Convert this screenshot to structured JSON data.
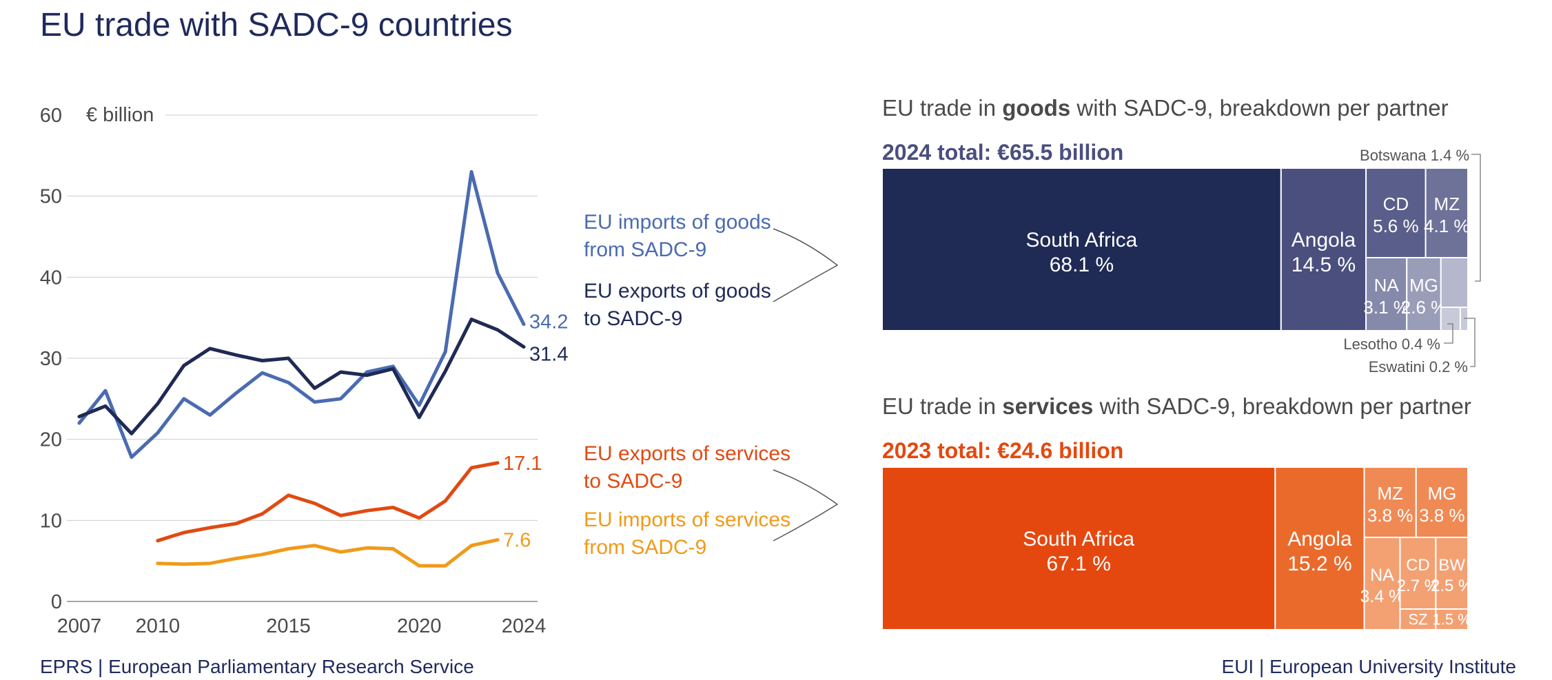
{
  "title": "EU trade with SADC-9 countries",
  "colors": {
    "title": "#1f2a5c",
    "imports_goods": "#4a6bb0",
    "exports_goods": "#1f2a55",
    "exports_services": "#e04a12",
    "imports_services": "#f09a1a",
    "grid": "#cccccc",
    "goods_treemap": [
      "#1f2a55",
      "#4a4f7e",
      "#5a5e8a",
      "#6e7299",
      "#8589aa",
      "#9a9db8",
      "#b5b7cc",
      "#c8cad9"
    ],
    "services_treemap": [
      "#e5480f",
      "#ea6a2c",
      "#f08a55",
      "#f3a173"
    ]
  },
  "chart_data": [
    {
      "type": "line",
      "ylabel": "€ billion",
      "ylim": [
        0,
        60
      ],
      "yticks": [
        "0",
        "10",
        "20",
        "30",
        "40",
        "50",
        "60"
      ],
      "xticks": [
        "2007",
        "2010",
        "2015",
        "2020",
        "2024"
      ],
      "series": [
        {
          "name": "EU imports of goods from SADC-9",
          "legend": [
            "EU imports of goods",
            "from SADC-9"
          ],
          "end_label": "34.2",
          "x": [
            2007,
            2008,
            2009,
            2010,
            2011,
            2012,
            2013,
            2014,
            2015,
            2016,
            2017,
            2018,
            2019,
            2020,
            2021,
            2022,
            2023,
            2024
          ],
          "values": [
            22.0,
            26.0,
            17.8,
            20.8,
            25.0,
            23.0,
            25.7,
            28.2,
            27.0,
            24.6,
            25.0,
            28.3,
            29.0,
            24.2,
            30.8,
            53.0,
            40.5,
            34.2
          ]
        },
        {
          "name": "EU exports of goods to SADC-9",
          "legend": [
            "EU exports of goods",
            "to SADC-9"
          ],
          "end_label": "31.4",
          "x": [
            2007,
            2008,
            2009,
            2010,
            2011,
            2012,
            2013,
            2014,
            2015,
            2016,
            2017,
            2018,
            2019,
            2020,
            2021,
            2022,
            2023,
            2024
          ],
          "values": [
            22.8,
            24.1,
            20.7,
            24.4,
            29.1,
            31.2,
            30.4,
            29.7,
            30.0,
            26.3,
            28.3,
            27.9,
            28.7,
            22.7,
            28.4,
            34.8,
            33.5,
            31.4
          ]
        },
        {
          "name": "EU exports of services to SADC-9",
          "legend": [
            "EU exports of services",
            "to SADC-9"
          ],
          "end_label": "17.1",
          "x": [
            2010,
            2011,
            2012,
            2013,
            2014,
            2015,
            2016,
            2017,
            2018,
            2019,
            2020,
            2021,
            2022,
            2023
          ],
          "values": [
            7.5,
            8.5,
            9.1,
            9.6,
            10.8,
            13.1,
            12.1,
            10.6,
            11.2,
            11.6,
            10.3,
            12.4,
            16.5,
            17.1
          ]
        },
        {
          "name": "EU imports of services from SADC-9",
          "legend": [
            "EU imports of services",
            "from SADC-9"
          ],
          "end_label": "7.6",
          "x": [
            2010,
            2011,
            2012,
            2013,
            2014,
            2015,
            2016,
            2017,
            2018,
            2019,
            2020,
            2021,
            2022,
            2023
          ],
          "values": [
            4.7,
            4.6,
            4.7,
            5.3,
            5.8,
            6.5,
            6.9,
            6.1,
            6.6,
            6.5,
            4.4,
            4.4,
            6.9,
            7.6
          ]
        }
      ]
    },
    {
      "type": "treemap",
      "title_parts": [
        "EU trade in ",
        "goods",
        " with SADC-9, breakdown per partner"
      ],
      "total": "2024 total: €65.5 billion",
      "total_value": 65.5,
      "segments": [
        {
          "label": "South Africa",
          "pct_label": "68.1 %",
          "value": 68.1
        },
        {
          "label": "Angola",
          "pct_label": "14.5 %",
          "value": 14.5
        },
        {
          "label": "CD",
          "pct_label": "5.6 %",
          "value": 5.6
        },
        {
          "label": "MZ",
          "pct_label": "4.1 %",
          "value": 4.1
        },
        {
          "label": "NA",
          "pct_label": "3.1 %",
          "value": 3.1
        },
        {
          "label": "MG",
          "pct_label": "2.6 %",
          "value": 2.6
        },
        {
          "label": "Botswana",
          "pct_label": "1.4 %",
          "value": 1.4,
          "callout": "Botswana 1.4 %"
        },
        {
          "label": "Lesotho",
          "pct_label": "0.4 %",
          "value": 0.4,
          "callout": "Lesotho 0.4 %"
        },
        {
          "label": "Eswatini",
          "pct_label": "0.2 %",
          "value": 0.2,
          "callout": "Eswatini 0.2 %"
        }
      ]
    },
    {
      "type": "treemap",
      "title_parts": [
        "EU trade in ",
        "services",
        " with SADC-9, breakdown per partner"
      ],
      "total": "2023 total: €24.6 billion",
      "total_value": 24.6,
      "segments": [
        {
          "label": "South Africa",
          "pct_label": "67.1 %",
          "value": 67.1
        },
        {
          "label": "Angola",
          "pct_label": "15.2 %",
          "value": 15.2
        },
        {
          "label": "MZ",
          "pct_label": "3.8 %",
          "value": 3.8
        },
        {
          "label": "MG",
          "pct_label": "3.8 %",
          "value": 3.8
        },
        {
          "label": "NA",
          "pct_label": "3.4 %",
          "value": 3.4
        },
        {
          "label": "CD",
          "pct_label": "2.7 %",
          "value": 2.7
        },
        {
          "label": "BW",
          "pct_label": "2.5 %",
          "value": 2.5
        },
        {
          "label": "SZ",
          "pct_label": "",
          "value": 0.4
        },
        {
          "label": "",
          "pct_label": "1.5 %",
          "value": 1.1
        }
      ]
    }
  ],
  "footer": {
    "left": "EPRS | European Parliamentary Research Service",
    "right": "EUI | European University Institute"
  }
}
